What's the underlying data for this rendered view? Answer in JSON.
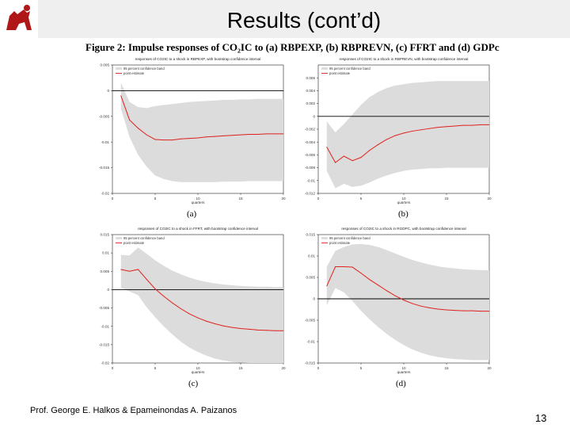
{
  "slide": {
    "title": "Results (cont’d)",
    "figure_caption_prefix": "Figure 2:",
    "figure_caption_text": "Impulse responses of CO₂IC to (a) RBPEXP, (b) RBPREVN, (c) FFRT and (d) GDPc",
    "footer": "Prof. George E. Halkos & Epameinondas A. Paizanos",
    "page_number": "13",
    "colors": {
      "band": "#dcdcdc",
      "line": "#e0201c",
      "zero": "#000000"
    }
  },
  "chart_data": [
    {
      "type": "line",
      "panel_label": "(a)",
      "title": "responses of CO2IC to a shock in RBPEXP, with bootstrap confidence interval",
      "xlabel": "quarters",
      "legend": [
        "95 percent confidence band",
        "point estimate"
      ],
      "xlim": [
        0,
        20
      ],
      "ylim": [
        -0.02,
        0.005
      ],
      "xticks": [
        0,
        5,
        10,
        15,
        20
      ],
      "yticks": [
        0.005,
        0,
        -0.005,
        -0.01,
        -0.015,
        -0.02
      ],
      "ytick_labels": [
        "0.005",
        "0",
        "-0.005",
        "-0.01",
        "-0.015",
        "-0.02"
      ],
      "x": [
        1,
        2,
        3,
        4,
        5,
        6,
        7,
        8,
        9,
        10,
        11,
        12,
        13,
        14,
        15,
        16,
        17,
        18,
        19,
        20
      ],
      "series": [
        {
          "values": [
            -0.001,
            -0.0057,
            -0.0073,
            -0.0086,
            -0.0095,
            -0.0096,
            -0.0096,
            -0.0094,
            -0.0093,
            -0.0092,
            -0.009,
            -0.0089,
            -0.0088,
            -0.0087,
            -0.0086,
            -0.0085,
            -0.0085,
            -0.0084,
            -0.0084,
            -0.0084
          ]
        }
      ],
      "band_upper": [
        0.0015,
        -0.0022,
        -0.0032,
        -0.0034,
        -0.003,
        -0.0028,
        -0.0026,
        -0.0024,
        -0.0022,
        -0.0021,
        -0.002,
        -0.0019,
        -0.0018,
        -0.0018,
        -0.0017,
        -0.0017,
        -0.0016,
        -0.0016,
        -0.0016,
        -0.0016
      ],
      "band_lower": [
        -0.0035,
        -0.009,
        -0.0125,
        -0.0148,
        -0.0165,
        -0.0172,
        -0.0176,
        -0.0178,
        -0.0178,
        -0.0178,
        -0.0178,
        -0.0178,
        -0.0177,
        -0.0177,
        -0.0177,
        -0.0176,
        -0.0176,
        -0.0176,
        -0.0176,
        -0.0176
      ]
    },
    {
      "type": "line",
      "panel_label": "(b)",
      "title": "responses of CO2IC to a shock in RBPREVN, with bootstrap confidence interval",
      "xlabel": "quarters",
      "legend": [
        "95 percent confidence band",
        "point estimate"
      ],
      "xlim": [
        0,
        20
      ],
      "ylim": [
        -0.012,
        0.008
      ],
      "xticks": [
        0,
        5,
        10,
        15,
        20
      ],
      "yticks": [
        0.006,
        0.004,
        0.002,
        0,
        -0.002,
        -0.004,
        -0.006,
        -0.008,
        -0.01,
        -0.012
      ],
      "ytick_labels": [
        "0.006",
        "0.004",
        "0.002",
        "0",
        "-0.002",
        "-0.004",
        "-0.006",
        "-0.008",
        "-0.01",
        "-0.012"
      ],
      "x": [
        1,
        2,
        3,
        4,
        5,
        6,
        7,
        8,
        9,
        10,
        11,
        12,
        13,
        14,
        15,
        16,
        17,
        18,
        19,
        20
      ],
      "series": [
        {
          "values": [
            -0.0048,
            -0.0072,
            -0.0062,
            -0.0069,
            -0.0064,
            -0.0053,
            -0.0044,
            -0.0036,
            -0.003,
            -0.0026,
            -0.0023,
            -0.0021,
            -0.0019,
            -0.0017,
            -0.0016,
            -0.0015,
            -0.0014,
            -0.0014,
            -0.0013,
            -0.0013
          ]
        }
      ],
      "band_upper": [
        -0.0008,
        -0.0025,
        -0.0012,
        0.0003,
        0.0018,
        0.003,
        0.0038,
        0.0044,
        0.0048,
        0.005,
        0.0052,
        0.0053,
        0.0054,
        0.0055,
        0.0055,
        0.0055,
        0.0055,
        0.0055,
        0.0055,
        0.0055
      ],
      "band_lower": [
        -0.0085,
        -0.0112,
        -0.0105,
        -0.011,
        -0.0108,
        -0.0103,
        -0.0097,
        -0.0092,
        -0.0088,
        -0.0085,
        -0.0083,
        -0.0082,
        -0.0081,
        -0.0081,
        -0.008,
        -0.008,
        -0.008,
        -0.008,
        -0.008,
        -0.008
      ]
    },
    {
      "type": "line",
      "panel_label": "(c)",
      "title": "responses of CO2IC to a shock in FFRT, with bootstrap confidence interval",
      "xlabel": "quarters",
      "legend": [
        "95 percent confidence band",
        "point estimate"
      ],
      "xlim": [
        0,
        20
      ],
      "ylim": [
        -0.02,
        0.015
      ],
      "xticks": [
        0,
        5,
        10,
        15,
        20
      ],
      "yticks": [
        0.015,
        0.01,
        0.005,
        0,
        -0.005,
        -0.01,
        -0.015,
        -0.02
      ],
      "ytick_labels": [
        "0.015",
        "0.01",
        "0.005",
        "0",
        "-0.005",
        "-0.01",
        "-0.015",
        "-0.02"
      ],
      "x": [
        1,
        2,
        3,
        4,
        5,
        6,
        7,
        8,
        9,
        10,
        11,
        12,
        13,
        14,
        15,
        16,
        17,
        18,
        19,
        20
      ],
      "series": [
        {
          "values": [
            0.0055,
            0.005,
            0.0055,
            0.0028,
            0.0002,
            -0.0018,
            -0.0036,
            -0.0052,
            -0.0066,
            -0.0077,
            -0.0086,
            -0.0093,
            -0.0099,
            -0.0103,
            -0.0106,
            -0.0108,
            -0.011,
            -0.0111,
            -0.0112,
            -0.0112
          ]
        }
      ],
      "band_upper": [
        0.0095,
        0.0093,
        0.0115,
        0.0098,
        0.008,
        0.0065,
        0.0052,
        0.0042,
        0.0033,
        0.0026,
        0.0021,
        0.0017,
        0.0014,
        0.0012,
        0.001,
        0.0009,
        0.0008,
        0.0008,
        0.0007,
        0.0007
      ],
      "band_lower": [
        0.0005,
        -0.0005,
        -0.0015,
        -0.0048,
        -0.0075,
        -0.01,
        -0.0122,
        -0.0142,
        -0.0158,
        -0.017,
        -0.018,
        -0.0188,
        -0.0193,
        -0.0197,
        -0.0199,
        -0.02,
        -0.02,
        -0.02,
        -0.02,
        -0.02
      ]
    },
    {
      "type": "line",
      "panel_label": "(d)",
      "title": "responses of CO2IC to a shock in RGDPC, with bootstrap confidence interval",
      "xlabel": "quarters",
      "legend": [
        "95 percent confidence band",
        "point estimate"
      ],
      "xlim": [
        0,
        20
      ],
      "ylim": [
        -0.015,
        0.015
      ],
      "xticks": [
        0,
        5,
        10,
        15,
        20
      ],
      "yticks": [
        0.015,
        0.01,
        0.005,
        0,
        -0.005,
        -0.01,
        -0.015
      ],
      "ytick_labels": [
        "0.015",
        "0.01",
        "0.005",
        "0",
        "-0.005",
        "-0.01",
        "-0.015"
      ],
      "x": [
        1,
        2,
        3,
        4,
        5,
        6,
        7,
        8,
        9,
        10,
        11,
        12,
        13,
        14,
        15,
        16,
        17,
        18,
        19,
        20
      ],
      "series": [
        {
          "values": [
            0.003,
            0.0075,
            0.0075,
            0.0074,
            0.006,
            0.0045,
            0.0032,
            0.0019,
            0.0007,
            -0.0003,
            -0.0011,
            -0.0017,
            -0.0021,
            -0.0024,
            -0.0026,
            -0.0027,
            -0.0028,
            -0.0028,
            -0.0029,
            -0.0029
          ]
        }
      ],
      "band_upper": [
        0.0075,
        0.0112,
        0.0121,
        0.0127,
        0.0128,
        0.0126,
        0.0121,
        0.0114,
        0.0106,
        0.0098,
        0.0091,
        0.0085,
        0.008,
        0.0076,
        0.0073,
        0.0071,
        0.0069,
        0.0068,
        0.0067,
        0.0067
      ],
      "band_lower": [
        -0.0015,
        0.0025,
        0.0015,
        -0.0005,
        -0.0028,
        -0.0048,
        -0.0066,
        -0.0082,
        -0.0096,
        -0.0108,
        -0.0118,
        -0.0126,
        -0.0132,
        -0.0136,
        -0.0139,
        -0.0141,
        -0.0142,
        -0.0143,
        -0.0143,
        -0.0143
      ]
    }
  ]
}
